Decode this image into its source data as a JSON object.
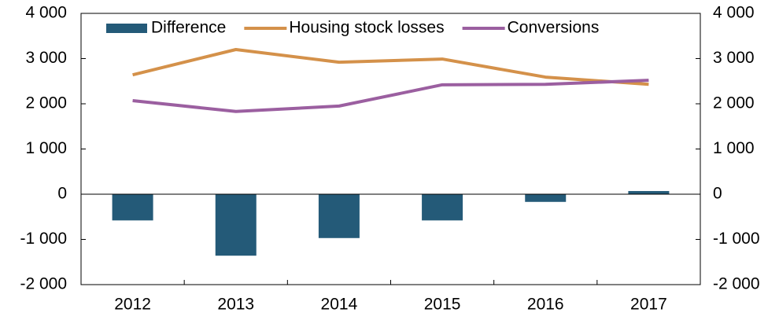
{
  "chart_data": {
    "type": "combo",
    "categories": [
      "2012",
      "2013",
      "2014",
      "2015",
      "2016",
      "2017"
    ],
    "series": [
      {
        "name": "Difference",
        "type": "bar",
        "color": "#245a78",
        "values": [
          -580,
          -1360,
          -970,
          -580,
          -170,
          70
        ]
      },
      {
        "name": "Housing stock losses",
        "type": "line",
        "color": "#d4914a",
        "values": [
          2640,
          3200,
          2920,
          2990,
          2590,
          2430
        ]
      },
      {
        "name": "Conversions",
        "type": "line",
        "color": "#9b5fa0",
        "values": [
          2070,
          1830,
          1950,
          2420,
          2430,
          2520
        ]
      }
    ],
    "ylim": [
      -2000,
      4000
    ],
    "yticks": [
      {
        "value": -2000,
        "label": "-2 000"
      },
      {
        "value": -1000,
        "label": "-1 000"
      },
      0,
      {
        "value": 1000,
        "label": "1 000"
      },
      {
        "value": 2000,
        "label": "2 000"
      },
      {
        "value": 3000,
        "label": "3 000"
      },
      {
        "value": 4000,
        "label": "4 000"
      }
    ],
    "y2lim": [
      -2000,
      4000
    ],
    "y2ticks": [
      {
        "value": -2000,
        "label": "-2 000"
      },
      {
        "value": -1000,
        "label": "-1 000"
      },
      0,
      {
        "value": 1000,
        "label": "1 000"
      },
      {
        "value": 2000,
        "label": "2 000"
      },
      {
        "value": 3000,
        "label": "3 000"
      },
      {
        "value": 4000,
        "label": "4 000"
      }
    ],
    "legend": "top"
  }
}
